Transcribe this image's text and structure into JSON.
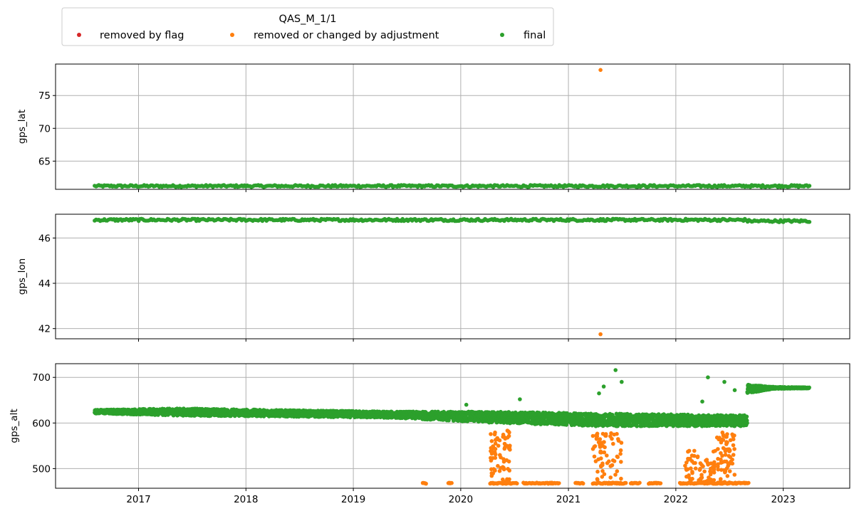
{
  "colors": {
    "removed_by_flag": "#d62728",
    "removed_or_changed": "#ff7f0e",
    "final": "#2ca02c",
    "grid": "#b0b0b0"
  },
  "chart_data": {
    "type": "scatter",
    "legend": {
      "title": "QAS_M_1/1",
      "placement": "top-left",
      "entries": [
        {
          "label": "removed by flag",
          "color_key": "removed_by_flag"
        },
        {
          "label": "removed or changed by adjustment",
          "color_key": "removed_or_changed"
        },
        {
          "label": "final",
          "color_key": "final"
        }
      ]
    },
    "grid": true,
    "xlim": [
      "2016-03-25",
      "2023-08-15"
    ],
    "x_ticks": [
      "2017",
      "2018",
      "2019",
      "2020",
      "2021",
      "2022",
      "2023"
    ],
    "panels": [
      {
        "ylabel": "gps_lat",
        "ylim": [
          60.7,
          79.8
        ],
        "y_ticks": [
          65,
          70,
          75
        ],
        "final_band": {
          "x_start": "2016-08-05",
          "x_end": "2023-03-31",
          "center": 61.2,
          "half_width": 0.15
        },
        "outliers": [
          {
            "series": "removed_or_changed",
            "x": "2021-04-20",
            "y": 78.9
          }
        ]
      },
      {
        "ylabel": "gps_lon",
        "ylim": [
          41.55,
          47.05
        ],
        "y_ticks": [
          42,
          44,
          46
        ],
        "final_band": {
          "x_start": "2016-08-05",
          "x_end": "2023-03-31",
          "center": 46.8,
          "half_width": 0.05
        },
        "step": {
          "x": "2022-09-01",
          "center_after": 46.75
        },
        "outliers": [
          {
            "series": "removed_or_changed",
            "x": "2021-04-20",
            "y": 41.75
          }
        ]
      },
      {
        "ylabel": "gps_alt",
        "ylim": [
          457,
          730
        ],
        "y_ticks": [
          500,
          600,
          700
        ],
        "final_trend": [
          {
            "x": "2016-08-05",
            "center": 625,
            "spread": 4
          },
          {
            "x": "2017-06-01",
            "center": 624,
            "spread": 8
          },
          {
            "x": "2018-06-01",
            "center": 621,
            "spread": 7
          },
          {
            "x": "2019-06-01",
            "center": 618,
            "spread": 7
          },
          {
            "x": "2020-04-01",
            "center": 613,
            "spread": 12
          },
          {
            "x": "2021-04-01",
            "center": 607,
            "spread": 14
          },
          {
            "x": "2022-08-25",
            "center": 605,
            "spread": 12
          },
          {
            "x": "2022-09-01",
            "center": 675,
            "spread": 10
          },
          {
            "x": "2022-12-01",
            "center": 677,
            "spread": 2
          },
          {
            "x": "2023-03-31",
            "center": 677,
            "spread": 1
          }
        ],
        "final_spikes": [
          {
            "x": "2021-04-15",
            "y": 665
          },
          {
            "x": "2021-05-01",
            "y": 680
          },
          {
            "x": "2021-06-10",
            "y": 716
          },
          {
            "x": "2021-07-01",
            "y": 690
          },
          {
            "x": "2022-04-20",
            "y": 700
          },
          {
            "x": "2022-06-15",
            "y": 690
          },
          {
            "x": "2020-07-20",
            "y": 652
          },
          {
            "x": "2020-01-20",
            "y": 640
          },
          {
            "x": "2022-04-01",
            "y": 647
          },
          {
            "x": "2022-07-20",
            "y": 672
          }
        ],
        "adjusted_floor": {
          "y": 468,
          "ranges": [
            [
              "2019-08-25",
              "2019-09-05"
            ],
            [
              "2019-11-20",
              "2019-12-01"
            ],
            [
              "2020-04-10",
              "2020-07-10"
            ],
            [
              "2020-08-01",
              "2020-11-30"
            ],
            [
              "2021-01-25",
              "2021-02-20"
            ],
            [
              "2021-03-25",
              "2021-07-15"
            ],
            [
              "2021-08-01",
              "2021-08-31"
            ],
            [
              "2021-10-01",
              "2021-11-10"
            ],
            [
              "2022-01-15",
              "2022-09-05"
            ]
          ]
        },
        "adjusted_clusters": [
          {
            "x_start": "2020-04-10",
            "x_end": "2020-06-20",
            "y_min": 468,
            "y_max": 585
          },
          {
            "x_start": "2021-03-25",
            "x_end": "2021-06-30",
            "y_min": 468,
            "y_max": 578
          },
          {
            "x_start": "2022-02-01",
            "x_end": "2022-05-15",
            "y_min": 468,
            "y_max": 540
          },
          {
            "x_start": "2022-05-20",
            "x_end": "2022-07-20",
            "y_min": 468,
            "y_max": 580
          }
        ]
      }
    ]
  }
}
